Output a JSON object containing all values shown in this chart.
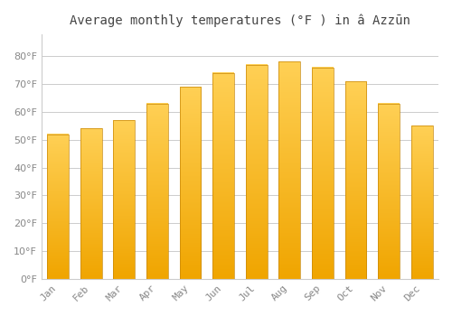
{
  "title": "Average monthly temperatures (°F ) in â Azzūn",
  "months": [
    "Jan",
    "Feb",
    "Mar",
    "Apr",
    "May",
    "Jun",
    "Jul",
    "Aug",
    "Sep",
    "Oct",
    "Nov",
    "Dec"
  ],
  "values": [
    52,
    54,
    57,
    63,
    69,
    74,
    77,
    78,
    76,
    71,
    63,
    55
  ],
  "bar_color_dark": "#F0A500",
  "bar_color_light": "#FFD055",
  "bar_edge_color": "#C8880A",
  "background_color": "#ffffff",
  "grid_color": "#cccccc",
  "ylim": [
    0,
    88
  ],
  "yticks": [
    0,
    10,
    20,
    30,
    40,
    50,
    60,
    70,
    80
  ],
  "title_fontsize": 10,
  "tick_fontsize": 8,
  "bar_width": 0.65
}
